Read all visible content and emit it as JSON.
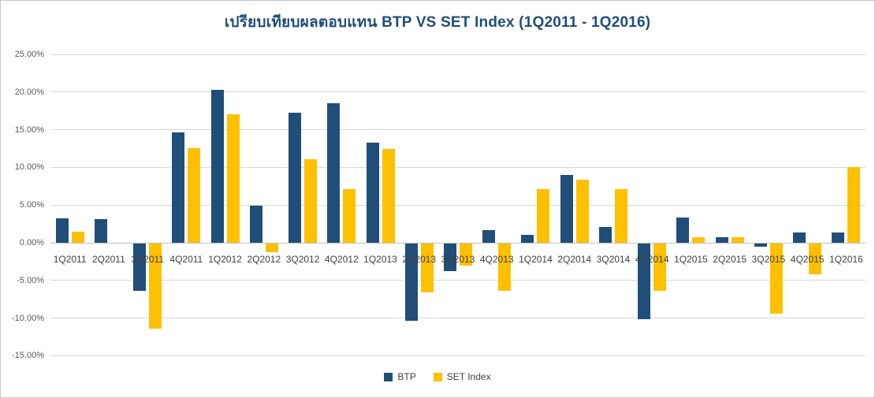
{
  "title": "เปรียบเทียบผลตอบแทน BTP VS SET Index (1Q2011 - 1Q2016)",
  "colors": {
    "btp_bar": "#1F4E79",
    "set_bar": "#FFC000",
    "title_text": "#1F4E79",
    "gridline": "#D9D9D9",
    "zero_axis_line": "#C0C0C0",
    "y_tick_text": "#595959",
    "x_tick_text": "#404040",
    "legend_text": "#404040",
    "frame_border": "#C6C6C6"
  },
  "chart_data": {
    "type": "bar",
    "title": "เปรียบเทียบผลตอบแทน BTP VS SET Index (1Q2011 - 1Q2016)",
    "categories": [
      "1Q2011",
      "2Q2011",
      "3Q2011",
      "4Q2011",
      "1Q2012",
      "2Q2012",
      "3Q2012",
      "4Q2012",
      "1Q2013",
      "2Q2013",
      "3Q2013",
      "4Q2013",
      "1Q2014",
      "2Q2014",
      "3Q2014",
      "4Q2014",
      "1Q2015",
      "2Q2015",
      "3Q2015",
      "4Q2015",
      "1Q2016"
    ],
    "series": [
      {
        "name": "BTP",
        "color": "#1F4E79",
        "values": [
          3.2,
          3.1,
          -6.3,
          14.6,
          20.3,
          4.9,
          17.3,
          18.5,
          13.3,
          -10.3,
          -3.7,
          1.7,
          1.0,
          9.0,
          2.1,
          -10.0,
          3.3,
          0.7,
          -0.4,
          1.4,
          1.4
        ]
      },
      {
        "name": "SET Index",
        "color": "#FFC000",
        "values": [
          1.5,
          0.0,
          -11.3,
          12.6,
          17.1,
          -1.2,
          11.1,
          7.1,
          12.4,
          -6.5,
          -2.9,
          -6.3,
          7.1,
          8.4,
          7.1,
          -6.3,
          0.7,
          0.7,
          -9.3,
          -4.1,
          10.0
        ]
      }
    ],
    "y_axis": {
      "min": -15,
      "max": 25,
      "step": 5,
      "tick_labels": [
        "25.00%",
        "20.00%",
        "15.00%",
        "10.00%",
        "5.00%",
        "0.00%",
        "-5.00%",
        "-10.00%",
        "-15.00%"
      ],
      "unit": "percent",
      "grid": true
    },
    "x_axis": {
      "label_position": "below-zero-line"
    },
    "legend_position": "bottom-center"
  }
}
